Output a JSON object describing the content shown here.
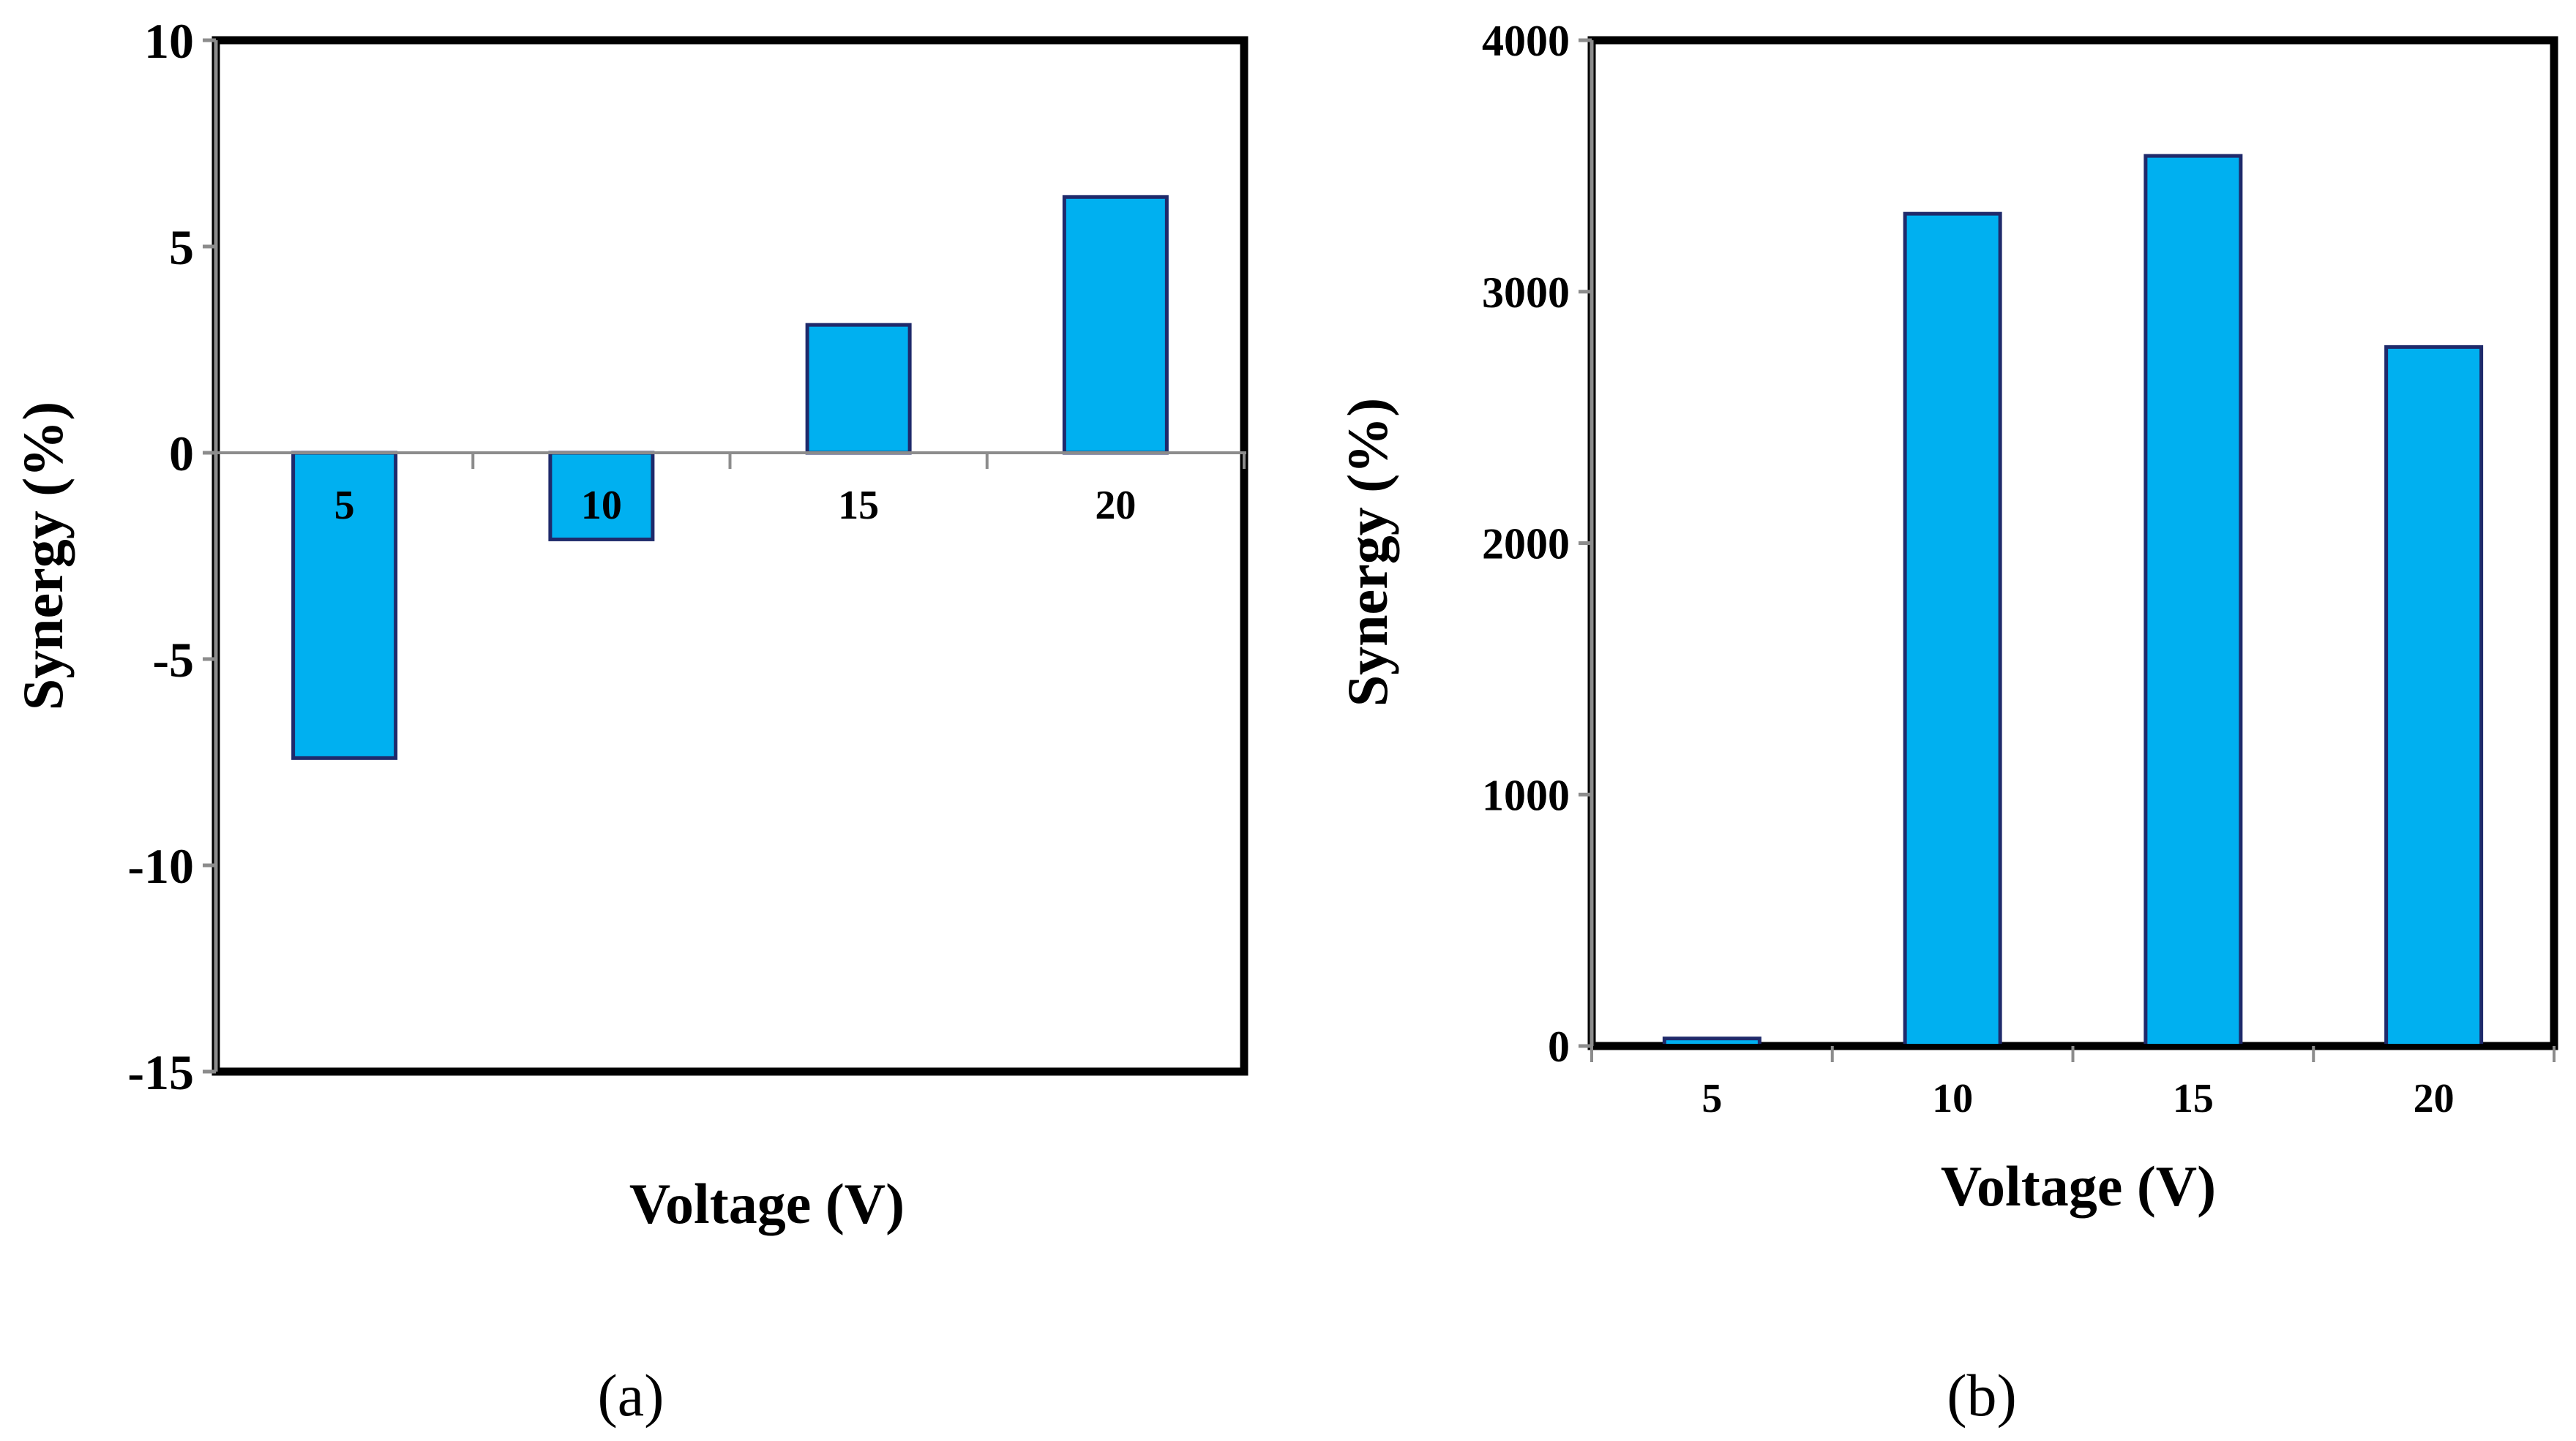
{
  "colors": {
    "bar_fill": "#00B0F0",
    "bar_stroke": "#1F2A6B",
    "frame": "#000000",
    "zero_line": "#8C8C8C",
    "axis": "#8C8C8C"
  },
  "chart_data": [
    {
      "panel": "a",
      "type": "bar",
      "caption": "(a)",
      "categories": [
        "5",
        "10",
        "15",
        "20"
      ],
      "values": [
        -7.4,
        -2.1,
        3.1,
        6.2
      ],
      "xlabel": "Voltage (V)",
      "ylabel": "Synergy (%)",
      "ylim": [
        -15,
        10
      ],
      "yticks": [
        10,
        5,
        0,
        -5,
        -10,
        -15
      ],
      "ytick_labels": [
        "10",
        "5",
        "0",
        "-5",
        "-10",
        "-15"
      ],
      "grid": false,
      "legend": "none"
    },
    {
      "panel": "b",
      "type": "bar",
      "caption": "(b)",
      "categories": [
        "5",
        "10",
        "15",
        "20"
      ],
      "values": [
        30,
        3310,
        3540,
        2780
      ],
      "xlabel": "Voltage (V)",
      "ylabel": "Synergy (%)",
      "ylim": [
        0,
        4000
      ],
      "yticks": [
        4000,
        3000,
        2000,
        1000,
        0
      ],
      "ytick_labels": [
        "4000",
        "3000",
        "2000",
        "1000",
        "0"
      ],
      "grid": false,
      "legend": "none"
    }
  ]
}
